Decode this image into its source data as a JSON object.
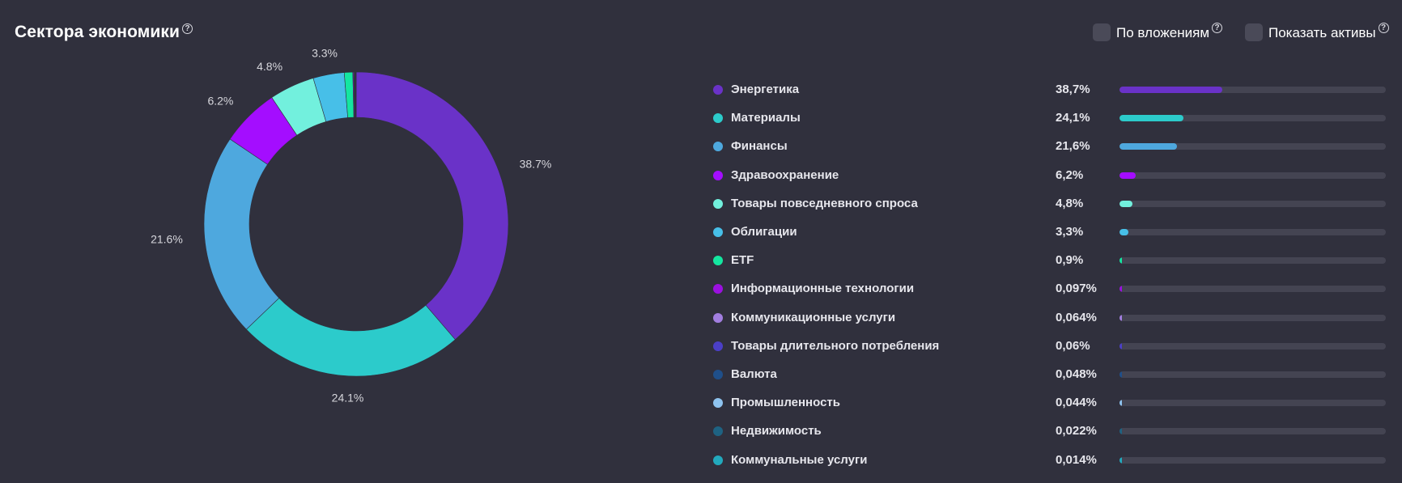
{
  "header": {
    "title": "Сектора экономики",
    "help_icon": "question-circle-icon",
    "toggles": [
      {
        "label": "По вложениям",
        "checked": false
      },
      {
        "label": "Показать активы",
        "checked": false
      }
    ]
  },
  "chart_data": {
    "type": "pie",
    "variant": "donut",
    "labels_shown": [
      "38.7%",
      "24.1%",
      "21.6%",
      "6.2%",
      "4.8%",
      "3.3%"
    ],
    "legend": "right",
    "slices": [
      {
        "name": "Энергетика",
        "value": 38.7,
        "pct_label": "38,7%",
        "color": "#6a32c8"
      },
      {
        "name": "Материалы",
        "value": 24.1,
        "pct_label": "24,1%",
        "color": "#2ccbcb"
      },
      {
        "name": "Финансы",
        "value": 21.6,
        "pct_label": "21,6%",
        "color": "#4ea8de"
      },
      {
        "name": "Здравоохранение",
        "value": 6.2,
        "pct_label": "6,2%",
        "color": "#a40dff"
      },
      {
        "name": "Товары повседневного спроса",
        "value": 4.8,
        "pct_label": "4,8%",
        "color": "#72f0dd"
      },
      {
        "name": "Облигации",
        "value": 3.3,
        "pct_label": "3,3%",
        "color": "#47bfe8"
      },
      {
        "name": "ETF",
        "value": 0.9,
        "pct_label": "0,9%",
        "color": "#14e6a0"
      },
      {
        "name": "Информационные технологии",
        "value": 0.097,
        "pct_label": "0,097%",
        "color": "#9b10e0"
      },
      {
        "name": "Коммуникационные услуги",
        "value": 0.064,
        "pct_label": "0,064%",
        "color": "#a27ee0"
      },
      {
        "name": "Товары длительного потребления",
        "value": 0.06,
        "pct_label": "0,06%",
        "color": "#4b3fc7"
      },
      {
        "name": "Валюта",
        "value": 0.048,
        "pct_label": "0,048%",
        "color": "#1f4f8a"
      },
      {
        "name": "Промышленность",
        "value": 0.044,
        "pct_label": "0,044%",
        "color": "#8ec3ef"
      },
      {
        "name": "Недвижимость",
        "value": 0.022,
        "pct_label": "0,022%",
        "color": "#1e6282"
      },
      {
        "name": "Коммунальные услуги",
        "value": 0.014,
        "pct_label": "0,014%",
        "color": "#22a9bd"
      }
    ]
  }
}
